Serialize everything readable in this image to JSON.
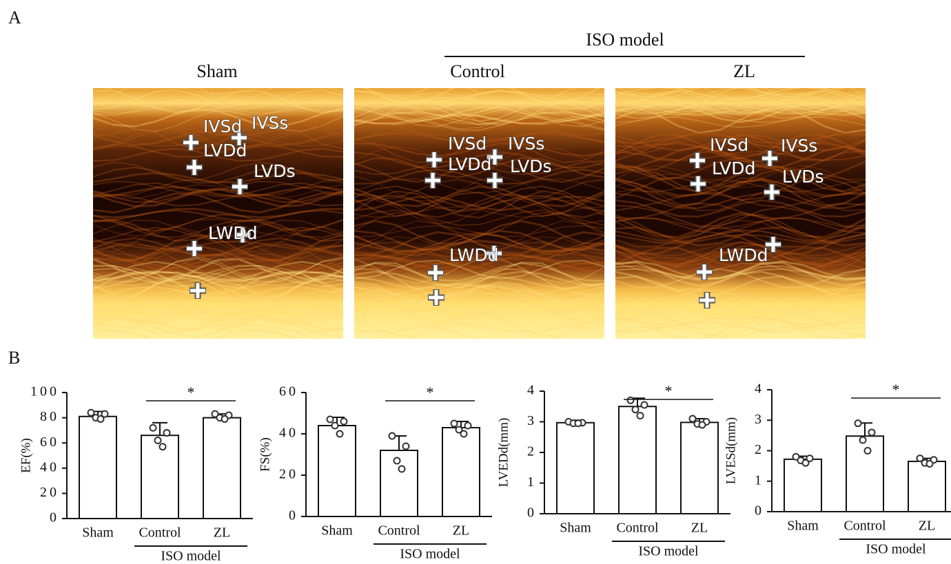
{
  "panel_a": {
    "label": "A",
    "group_label": "ISO model",
    "columns": [
      "Sham",
      "Control",
      "ZL"
    ],
    "images": [
      {
        "labels": [
          "IVSd",
          "IVSs",
          "LVDd",
          "LVDs",
          "LWDd"
        ]
      },
      {
        "labels": [
          "IVSd",
          "IVSs",
          "LVDd",
          "LVDs",
          "LWDd"
        ]
      },
      {
        "labels": [
          "IVSd",
          "IVSs",
          "LVDd",
          "LVDs",
          "LWDd"
        ]
      }
    ]
  },
  "panel_b": {
    "label": "B"
  },
  "chart_data": [
    {
      "type": "bar",
      "ylabel": "EF(%)",
      "categories": [
        "Sham",
        "Control",
        "ZL"
      ],
      "values": [
        81,
        66,
        80
      ],
      "errors": [
        4,
        10,
        3
      ],
      "points": [
        [
          84,
          83,
          80,
          79
        ],
        [
          72,
          68,
          62,
          57
        ],
        [
          83,
          82,
          80,
          79
        ]
      ],
      "ylim": [
        0,
        100
      ],
      "yticks": [
        0,
        20,
        40,
        60,
        80,
        100
      ],
      "group_label": "ISO model",
      "significance": "*"
    },
    {
      "type": "bar",
      "ylabel": "FS(%)",
      "categories": [
        "Sham",
        "Control",
        "ZL"
      ],
      "values": [
        44,
        32,
        43
      ],
      "errors": [
        4,
        7,
        3
      ],
      "points": [
        [
          47,
          46,
          44,
          40
        ],
        [
          39,
          34,
          27,
          23
        ],
        [
          45,
          44,
          42,
          40
        ]
      ],
      "ylim": [
        0,
        60
      ],
      "yticks": [
        0,
        20,
        40,
        60
      ],
      "group_label": "ISO model",
      "significance": "*"
    },
    {
      "type": "bar",
      "ylabel": "LVEDd(mm)",
      "categories": [
        "Sham",
        "Control",
        "ZL"
      ],
      "values": [
        2.97,
        3.5,
        2.98
      ],
      "errors": [
        0.08,
        0.27,
        0.12
      ],
      "points": [
        [
          3.0,
          2.97,
          2.95,
          2.95
        ],
        [
          3.7,
          3.55,
          3.4,
          3.2
        ],
        [
          3.1,
          3.0,
          2.93,
          2.9
        ]
      ],
      "ylim": [
        0,
        4
      ],
      "yticks": [
        0,
        1,
        2,
        3,
        4
      ],
      "group_label": "ISO model",
      "significance": "*"
    },
    {
      "type": "bar",
      "ylabel": "LVESd(mm)",
      "categories": [
        "Sham",
        "Control",
        "ZL"
      ],
      "values": [
        1.72,
        2.48,
        1.65
      ],
      "errors": [
        0.1,
        0.43,
        0.1
      ],
      "points": [
        [
          1.8,
          1.75,
          1.68,
          1.6
        ],
        [
          2.9,
          2.6,
          2.35,
          2.0
        ],
        [
          1.75,
          1.7,
          1.6,
          1.57
        ]
      ],
      "ylim": [
        0,
        4
      ],
      "yticks": [
        0,
        1,
        2,
        3,
        4
      ],
      "group_label": "ISO model",
      "significance": "*"
    }
  ]
}
